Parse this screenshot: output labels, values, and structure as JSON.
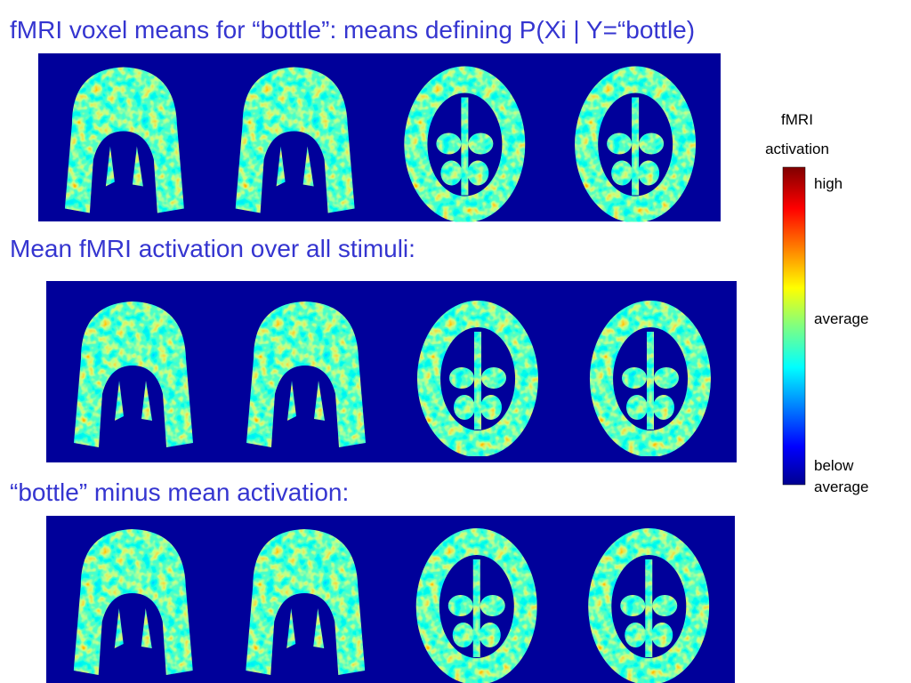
{
  "headings": [
    "fMRI voxel means for “bottle”: means defining P(Xi | Y=“bottle)",
    "Mean fMRI activation over all stimuli:",
    "“bottle” minus mean activation:"
  ],
  "colorbar": {
    "title": "fMRI activation",
    "labels": [
      "high",
      "average",
      "below average"
    ]
  }
}
